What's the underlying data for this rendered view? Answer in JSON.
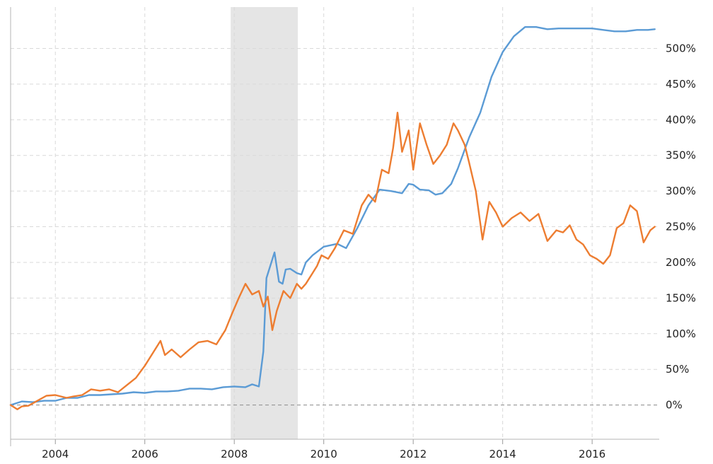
{
  "chart_data": {
    "type": "line",
    "title": "",
    "xlabel": "",
    "ylabel": "",
    "grid": true,
    "legend": "none",
    "x_tick_labels": [
      "2004",
      "2006",
      "2008",
      "2010",
      "2012",
      "2014",
      "2016"
    ],
    "y_tick_labels": [
      "0%",
      "50%",
      "100%",
      "150%",
      "200%",
      "250%",
      "300%",
      "350%",
      "400%",
      "450%",
      "500%"
    ],
    "y_ticks": [
      0,
      50,
      100,
      150,
      200,
      250,
      300,
      350,
      400,
      450,
      500
    ],
    "x_ticks": [
      2004,
      2006,
      2008,
      2010,
      2012,
      2014,
      2016
    ],
    "xlim": [
      2003.0,
      2017.5
    ],
    "ylim": [
      -48,
      558
    ],
    "zero_line": 0,
    "recession_band": {
      "x_start": 2007.92,
      "x_end": 2009.42,
      "color": "#e5e5e5"
    },
    "series": [
      {
        "color": "#5b9bd5",
        "x": [
          2003.0,
          2003.25,
          2003.5,
          2003.75,
          2004.0,
          2004.25,
          2004.5,
          2004.75,
          2005.0,
          2005.25,
          2005.5,
          2005.75,
          2006.0,
          2006.25,
          2006.5,
          2006.75,
          2007.0,
          2007.25,
          2007.5,
          2007.75,
          2008.0,
          2008.25,
          2008.4,
          2008.55,
          2008.65,
          2008.72,
          2008.78,
          2008.9,
          2009.0,
          2009.08,
          2009.15,
          2009.25,
          2009.4,
          2009.5,
          2009.6,
          2009.75,
          2010.0,
          2010.3,
          2010.5,
          2010.75,
          2011.0,
          2011.25,
          2011.5,
          2011.75,
          2011.9,
          2012.0,
          2012.15,
          2012.35,
          2012.5,
          2012.65,
          2012.85,
          2013.0,
          2013.25,
          2013.5,
          2013.75,
          2014.0,
          2014.25,
          2014.5,
          2014.75,
          2015.0,
          2015.25,
          2015.5,
          2015.75,
          2016.0,
          2016.25,
          2016.5,
          2016.75,
          2017.0,
          2017.25,
          2017.4
        ],
        "y": [
          0,
          5,
          4,
          6,
          6,
          10,
          10,
          14,
          14,
          15,
          16,
          18,
          17,
          19,
          19,
          20,
          23,
          23,
          22,
          25,
          26,
          25,
          29,
          26,
          75,
          178,
          190,
          214,
          173,
          170,
          190,
          191,
          185,
          183,
          200,
          210,
          222,
          226,
          220,
          248,
          280,
          302,
          300,
          297,
          310,
          309,
          302,
          301,
          295,
          297,
          310,
          332,
          375,
          410,
          460,
          495,
          517,
          530,
          530,
          527,
          528,
          528,
          528,
          528,
          526,
          524,
          524,
          526,
          526,
          527
        ],
        "values_note": ""
      },
      {
        "color": "#ed7d31",
        "x": [
          2003.0,
          2003.15,
          2003.25,
          2003.4,
          2003.6,
          2003.8,
          2004.0,
          2004.25,
          2004.4,
          2004.6,
          2004.8,
          2005.0,
          2005.2,
          2005.4,
          2005.6,
          2005.8,
          2006.0,
          2006.2,
          2006.35,
          2006.45,
          2006.6,
          2006.8,
          2007.0,
          2007.2,
          2007.4,
          2007.6,
          2007.8,
          2007.95,
          2008.1,
          2008.25,
          2008.4,
          2008.55,
          2008.65,
          2008.75,
          2008.85,
          2008.95,
          2009.1,
          2009.25,
          2009.4,
          2009.5,
          2009.6,
          2009.75,
          2009.85,
          2009.95,
          2010.1,
          2010.25,
          2010.45,
          2010.65,
          2010.85,
          2011.0,
          2011.15,
          2011.3,
          2011.45,
          2011.55,
          2011.65,
          2011.75,
          2011.9,
          2012.0,
          2012.15,
          2012.3,
          2012.45,
          2012.6,
          2012.75,
          2012.9,
          2013.0,
          2013.15,
          2013.25,
          2013.4,
          2013.55,
          2013.7,
          2013.85,
          2014.0,
          2014.2,
          2014.4,
          2014.6,
          2014.8,
          2015.0,
          2015.2,
          2015.35,
          2015.5,
          2015.65,
          2015.8,
          2015.95,
          2016.1,
          2016.25,
          2016.4,
          2016.55,
          2016.7,
          2016.85,
          2017.0,
          2017.15,
          2017.3,
          2017.4
        ],
        "y": [
          0,
          -6,
          -2,
          -1,
          6,
          13,
          14,
          10,
          12,
          14,
          22,
          20,
          22,
          18,
          28,
          38,
          55,
          75,
          90,
          70,
          78,
          67,
          78,
          88,
          90,
          85,
          105,
          128,
          150,
          170,
          155,
          160,
          138,
          152,
          105,
          132,
          160,
          150,
          170,
          163,
          170,
          185,
          195,
          210,
          205,
          220,
          245,
          240,
          280,
          295,
          285,
          330,
          325,
          360,
          410,
          355,
          385,
          330,
          395,
          365,
          338,
          350,
          365,
          395,
          385,
          365,
          340,
          300,
          232,
          285,
          270,
          250,
          262,
          270,
          258,
          268,
          230,
          245,
          242,
          252,
          232,
          225,
          210,
          205,
          198,
          210,
          248,
          255,
          280,
          272,
          228,
          245,
          250
        ],
        "values_note": ""
      }
    ]
  }
}
